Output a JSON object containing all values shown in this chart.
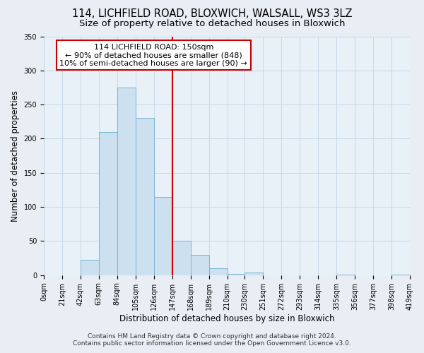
{
  "title": "114, LICHFIELD ROAD, BLOXWICH, WALSALL, WS3 3LZ",
  "subtitle": "Size of property relative to detached houses in Bloxwich",
  "xlabel": "Distribution of detached houses by size in Bloxwich",
  "ylabel": "Number of detached properties",
  "bin_edges": [
    0,
    21,
    42,
    63,
    84,
    105,
    126,
    147,
    168,
    189,
    210,
    230,
    251,
    272,
    293,
    314,
    335,
    356,
    377,
    398,
    419
  ],
  "bin_counts": [
    0,
    0,
    22,
    210,
    275,
    230,
    115,
    50,
    30,
    10,
    2,
    4,
    0,
    0,
    0,
    0,
    1,
    0,
    0,
    1
  ],
  "bar_color": "#cce0f0",
  "bar_edge_color": "#7ab4d4",
  "vline_x": 147,
  "vline_color": "#cc0000",
  "annotation_title": "114 LICHFIELD ROAD: 150sqm",
  "annotation_line1": "← 90% of detached houses are smaller (848)",
  "annotation_line2": "10% of semi-detached houses are larger (90) →",
  "annotation_box_color": "#ffffff",
  "annotation_box_edge": "#cc0000",
  "xlim": [
    0,
    419
  ],
  "ylim": [
    0,
    350
  ],
  "yticks": [
    0,
    50,
    100,
    150,
    200,
    250,
    300,
    350
  ],
  "xtick_labels": [
    "0sqm",
    "21sqm",
    "42sqm",
    "63sqm",
    "84sqm",
    "105sqm",
    "126sqm",
    "147sqm",
    "168sqm",
    "189sqm",
    "210sqm",
    "230sqm",
    "251sqm",
    "272sqm",
    "293sqm",
    "314sqm",
    "335sqm",
    "356sqm",
    "377sqm",
    "398sqm",
    "419sqm"
  ],
  "footer_line1": "Contains HM Land Registry data © Crown copyright and database right 2024.",
  "footer_line2": "Contains public sector information licensed under the Open Government Licence v3.0.",
  "bg_color": "#e8eef4",
  "plot_bg_color": "#e8f0f8",
  "title_fontsize": 10.5,
  "subtitle_fontsize": 9.5,
  "axis_label_fontsize": 8.5,
  "tick_fontsize": 7,
  "annotation_fontsize": 8,
  "footer_fontsize": 6.5,
  "grid_color": "#c8d8e8"
}
